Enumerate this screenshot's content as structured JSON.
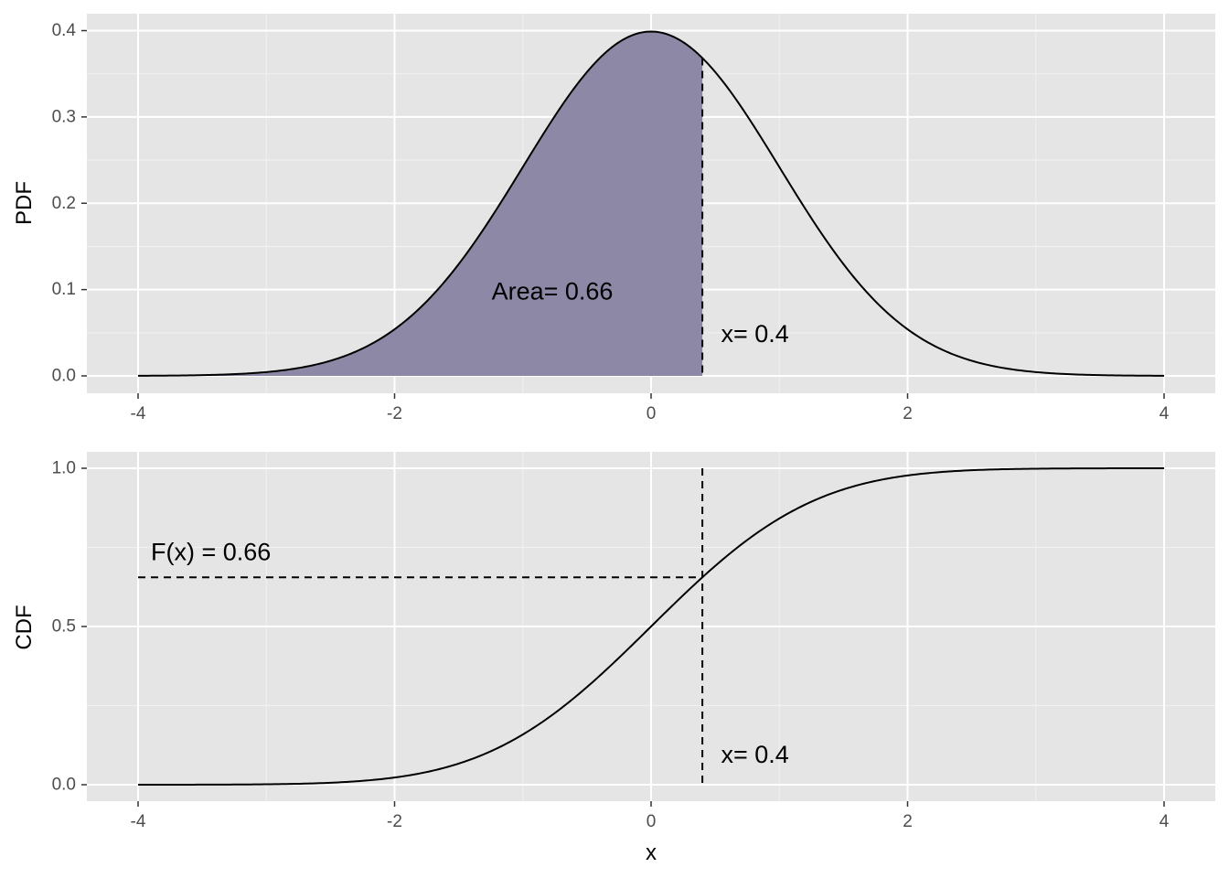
{
  "chart_data": [
    {
      "type": "area",
      "panel": "top",
      "ylabel": "PDF",
      "xlabel": "",
      "xlim": [
        -4,
        4
      ],
      "ylim": [
        0,
        0.4
      ],
      "x_ticks": [
        -4,
        -2,
        0,
        2,
        4
      ],
      "x_tick_labels": [
        "-4",
        "-2",
        "0",
        "2",
        "4"
      ],
      "y_ticks": [
        0.0,
        0.1,
        0.2,
        0.3,
        0.4
      ],
      "y_tick_labels": [
        "0.0",
        "0.1",
        "0.2",
        "0.3",
        "0.4"
      ],
      "curve": {
        "x": [
          -4.0,
          -3.5,
          -3.0,
          -2.5,
          -2.0,
          -1.5,
          -1.0,
          -0.5,
          0.0,
          0.4,
          0.5,
          1.0,
          1.5,
          2.0,
          2.5,
          3.0,
          3.5,
          4.0
        ],
        "y": [
          0.0001,
          0.0009,
          0.0044,
          0.0175,
          0.054,
          0.1295,
          0.242,
          0.3521,
          0.3989,
          0.3683,
          0.3521,
          0.242,
          0.1295,
          0.054,
          0.0175,
          0.0044,
          0.0009,
          0.0001
        ]
      },
      "shaded_region": {
        "from": -4,
        "to": 0.4,
        "color": "#8d88a6",
        "area": 0.66
      },
      "reference_line": {
        "x": 0.4,
        "style": "dashed"
      },
      "annotations": [
        {
          "text": "Area= 0.66",
          "x": -0.77,
          "y": 0.098
        },
        {
          "text": "x= 0.4",
          "x": 0.81,
          "y": 0.049
        }
      ],
      "grid": true,
      "panel_background": "#e5e5e5",
      "grid_color": "#ffffff"
    },
    {
      "type": "line",
      "panel": "bottom",
      "ylabel": "CDF",
      "xlabel": "x",
      "xlim": [
        -4,
        4
      ],
      "ylim": [
        0,
        1
      ],
      "x_ticks": [
        -4,
        -2,
        0,
        2,
        4
      ],
      "x_tick_labels": [
        "-4",
        "-2",
        "0",
        "2",
        "4"
      ],
      "y_ticks": [
        0.0,
        0.5,
        1.0
      ],
      "y_tick_labels": [
        "0.0",
        "0.5",
        "1.0"
      ],
      "curve": {
        "x": [
          -4.0,
          -3.5,
          -3.0,
          -2.5,
          -2.0,
          -1.5,
          -1.0,
          -0.5,
          0.0,
          0.4,
          0.5,
          1.0,
          1.5,
          2.0,
          2.5,
          3.0,
          3.5,
          4.0
        ],
        "y": [
          0.0,
          0.0002,
          0.0013,
          0.0062,
          0.0228,
          0.0668,
          0.1587,
          0.3085,
          0.5,
          0.6554,
          0.6915,
          0.8413,
          0.9332,
          0.9772,
          0.9938,
          0.9987,
          0.9998,
          1.0
        ]
      },
      "reference_lines": [
        {
          "orientation": "vertical",
          "x": 0.4,
          "from_y": 0,
          "to_y": 1,
          "style": "dashed"
        },
        {
          "orientation": "horizontal",
          "y": 0.6554,
          "from_x": -4,
          "to_x": 0.4,
          "style": "dashed"
        }
      ],
      "annotations": [
        {
          "text": "F(x) = 0.66",
          "x": -3.9,
          "y": 0.735
        },
        {
          "text": "x= 0.4",
          "x": 0.81,
          "y": 0.096
        }
      ],
      "grid": true,
      "panel_background": "#e5e5e5",
      "grid_color": "#ffffff"
    }
  ]
}
